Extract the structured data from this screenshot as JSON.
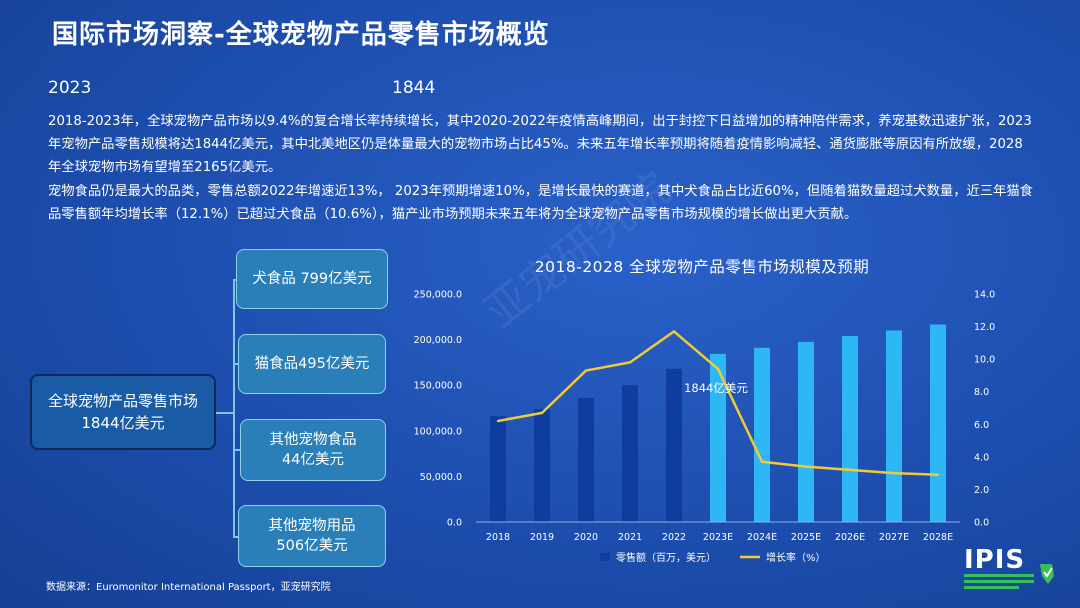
{
  "page_title": "国际市场洞察-全球宠物产品零售市场概览",
  "headline": {
    "year": "2023",
    "value": "1844"
  },
  "paragraphs": [
    "2018-2023年，全球宠物产品市场以9.4%的复合增长率持续增长，其中2020-2022年疫情高峰期间，出于封控下日益增加的精神陪伴需求，养宠基数迅速扩张，2023年宠物产品零售规模将达1844亿美元，其中北美地区仍是体量最大的宠物市场占比45%。未来五年增长率预期将随着疫情影响减轻、通货膨胀等原因有所放缓，2028年全球宠物市场有望增至2165亿美元。",
    "宠物食品仍是最大的品类，零售总额2022年增速近13%， 2023年预期增速10%，是增长最快的赛道，其中犬食品占比近60%，但随着猫数量超过犬数量，近三年猫食品零售额年均增长率（12.1%）已超过犬食品（10.6%），猫产业市场预期未来五年将为全球宠物产品零售市场规模的增长做出更大贡献。"
  ],
  "tree": {
    "root": {
      "line1": "全球宠物产品零售市场",
      "line2": "1844亿美元"
    },
    "children": [
      {
        "line1": "犬食品 799亿美元",
        "line2": ""
      },
      {
        "line1": "猫食品495亿美元",
        "line2": ""
      },
      {
        "line1": "其他宠物食品",
        "line2": "44亿美元"
      },
      {
        "line1": "其他宠物用品",
        "line2": "506亿美元"
      }
    ]
  },
  "chart_data": {
    "type": "bar",
    "title": "2018-2028 全球宠物产品零售市场规模及预期",
    "categories": [
      "2018",
      "2019",
      "2020",
      "2021",
      "2022",
      "2023E",
      "2024E",
      "2025E",
      "2026E",
      "2027E",
      "2028E"
    ],
    "series": [
      {
        "name": "零售额（百万，美元）",
        "type": "bar",
        "axis": "left",
        "values": [
          116000,
          124000,
          136000,
          150000,
          168000,
          184400,
          191000,
          197500,
          204000,
          210000,
          216500
        ],
        "colors": [
          "#0e3d9e",
          "#0e3d9e",
          "#0e3d9e",
          "#0e3d9e",
          "#0e3d9e",
          "#2fb7f5",
          "#2fb7f5",
          "#2fb7f5",
          "#2fb7f5",
          "#2fb7f5",
          "#2fb7f5"
        ]
      },
      {
        "name": "增长率（%）",
        "type": "line",
        "axis": "right",
        "color": "#f2cb33",
        "values": [
          6.2,
          6.7,
          9.3,
          9.8,
          11.7,
          9.4,
          3.7,
          3.4,
          3.2,
          3.0,
          2.9
        ]
      }
    ],
    "y_left": {
      "min": 0,
      "max": 250000,
      "ticks": [
        "0.0",
        "50,000.0",
        "100,000.0",
        "150,000.0",
        "200,000.0",
        "250,000.0"
      ]
    },
    "y_right": {
      "min": 0,
      "max": 14,
      "ticks": [
        "0.0",
        "2.0",
        "4.0",
        "6.0",
        "8.0",
        "10.0",
        "12.0",
        "14.0"
      ]
    },
    "annotations": [
      {
        "text": "1844亿美元",
        "category": "2023E"
      }
    ],
    "legend_placement": "bottom",
    "grid": false
  },
  "source": "数据来源：Euromonitor International Passport，亚宠研究院",
  "watermark": "亚宠研究院",
  "logo": {
    "text": "IPIS",
    "accent": "#37c05a"
  }
}
